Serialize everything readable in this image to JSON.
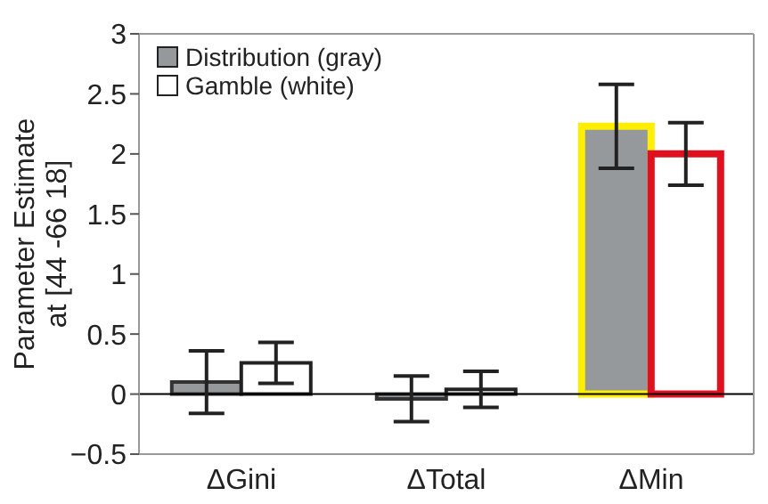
{
  "chart_data": {
    "type": "bar",
    "ylabel": "Parameter Estimate\nat [44 -66 18]",
    "categories": [
      "ΔGini",
      "ΔTotal",
      "ΔMin"
    ],
    "series": [
      {
        "name": "Distribution (gray)",
        "color": "#96999c",
        "values": [
          0.1,
          -0.04,
          2.23
        ],
        "errors": [
          0.26,
          0.19,
          0.35
        ]
      },
      {
        "name": "Gamble (white)",
        "color": "#ffffff",
        "values": [
          0.26,
          0.04,
          2.0
        ],
        "errors": [
          0.17,
          0.15,
          0.26
        ]
      }
    ],
    "ylim": [
      -0.5,
      3
    ],
    "yticks": [
      {
        "value": -0.5,
        "label": "−0.5"
      },
      0,
      0.5,
      1,
      1.5,
      2,
      2.5,
      3
    ],
    "ref_lines": [
      {
        "axis": "y",
        "value": 0,
        "color": "#000000"
      }
    ],
    "grid": false,
    "legend": "top left"
  }
}
